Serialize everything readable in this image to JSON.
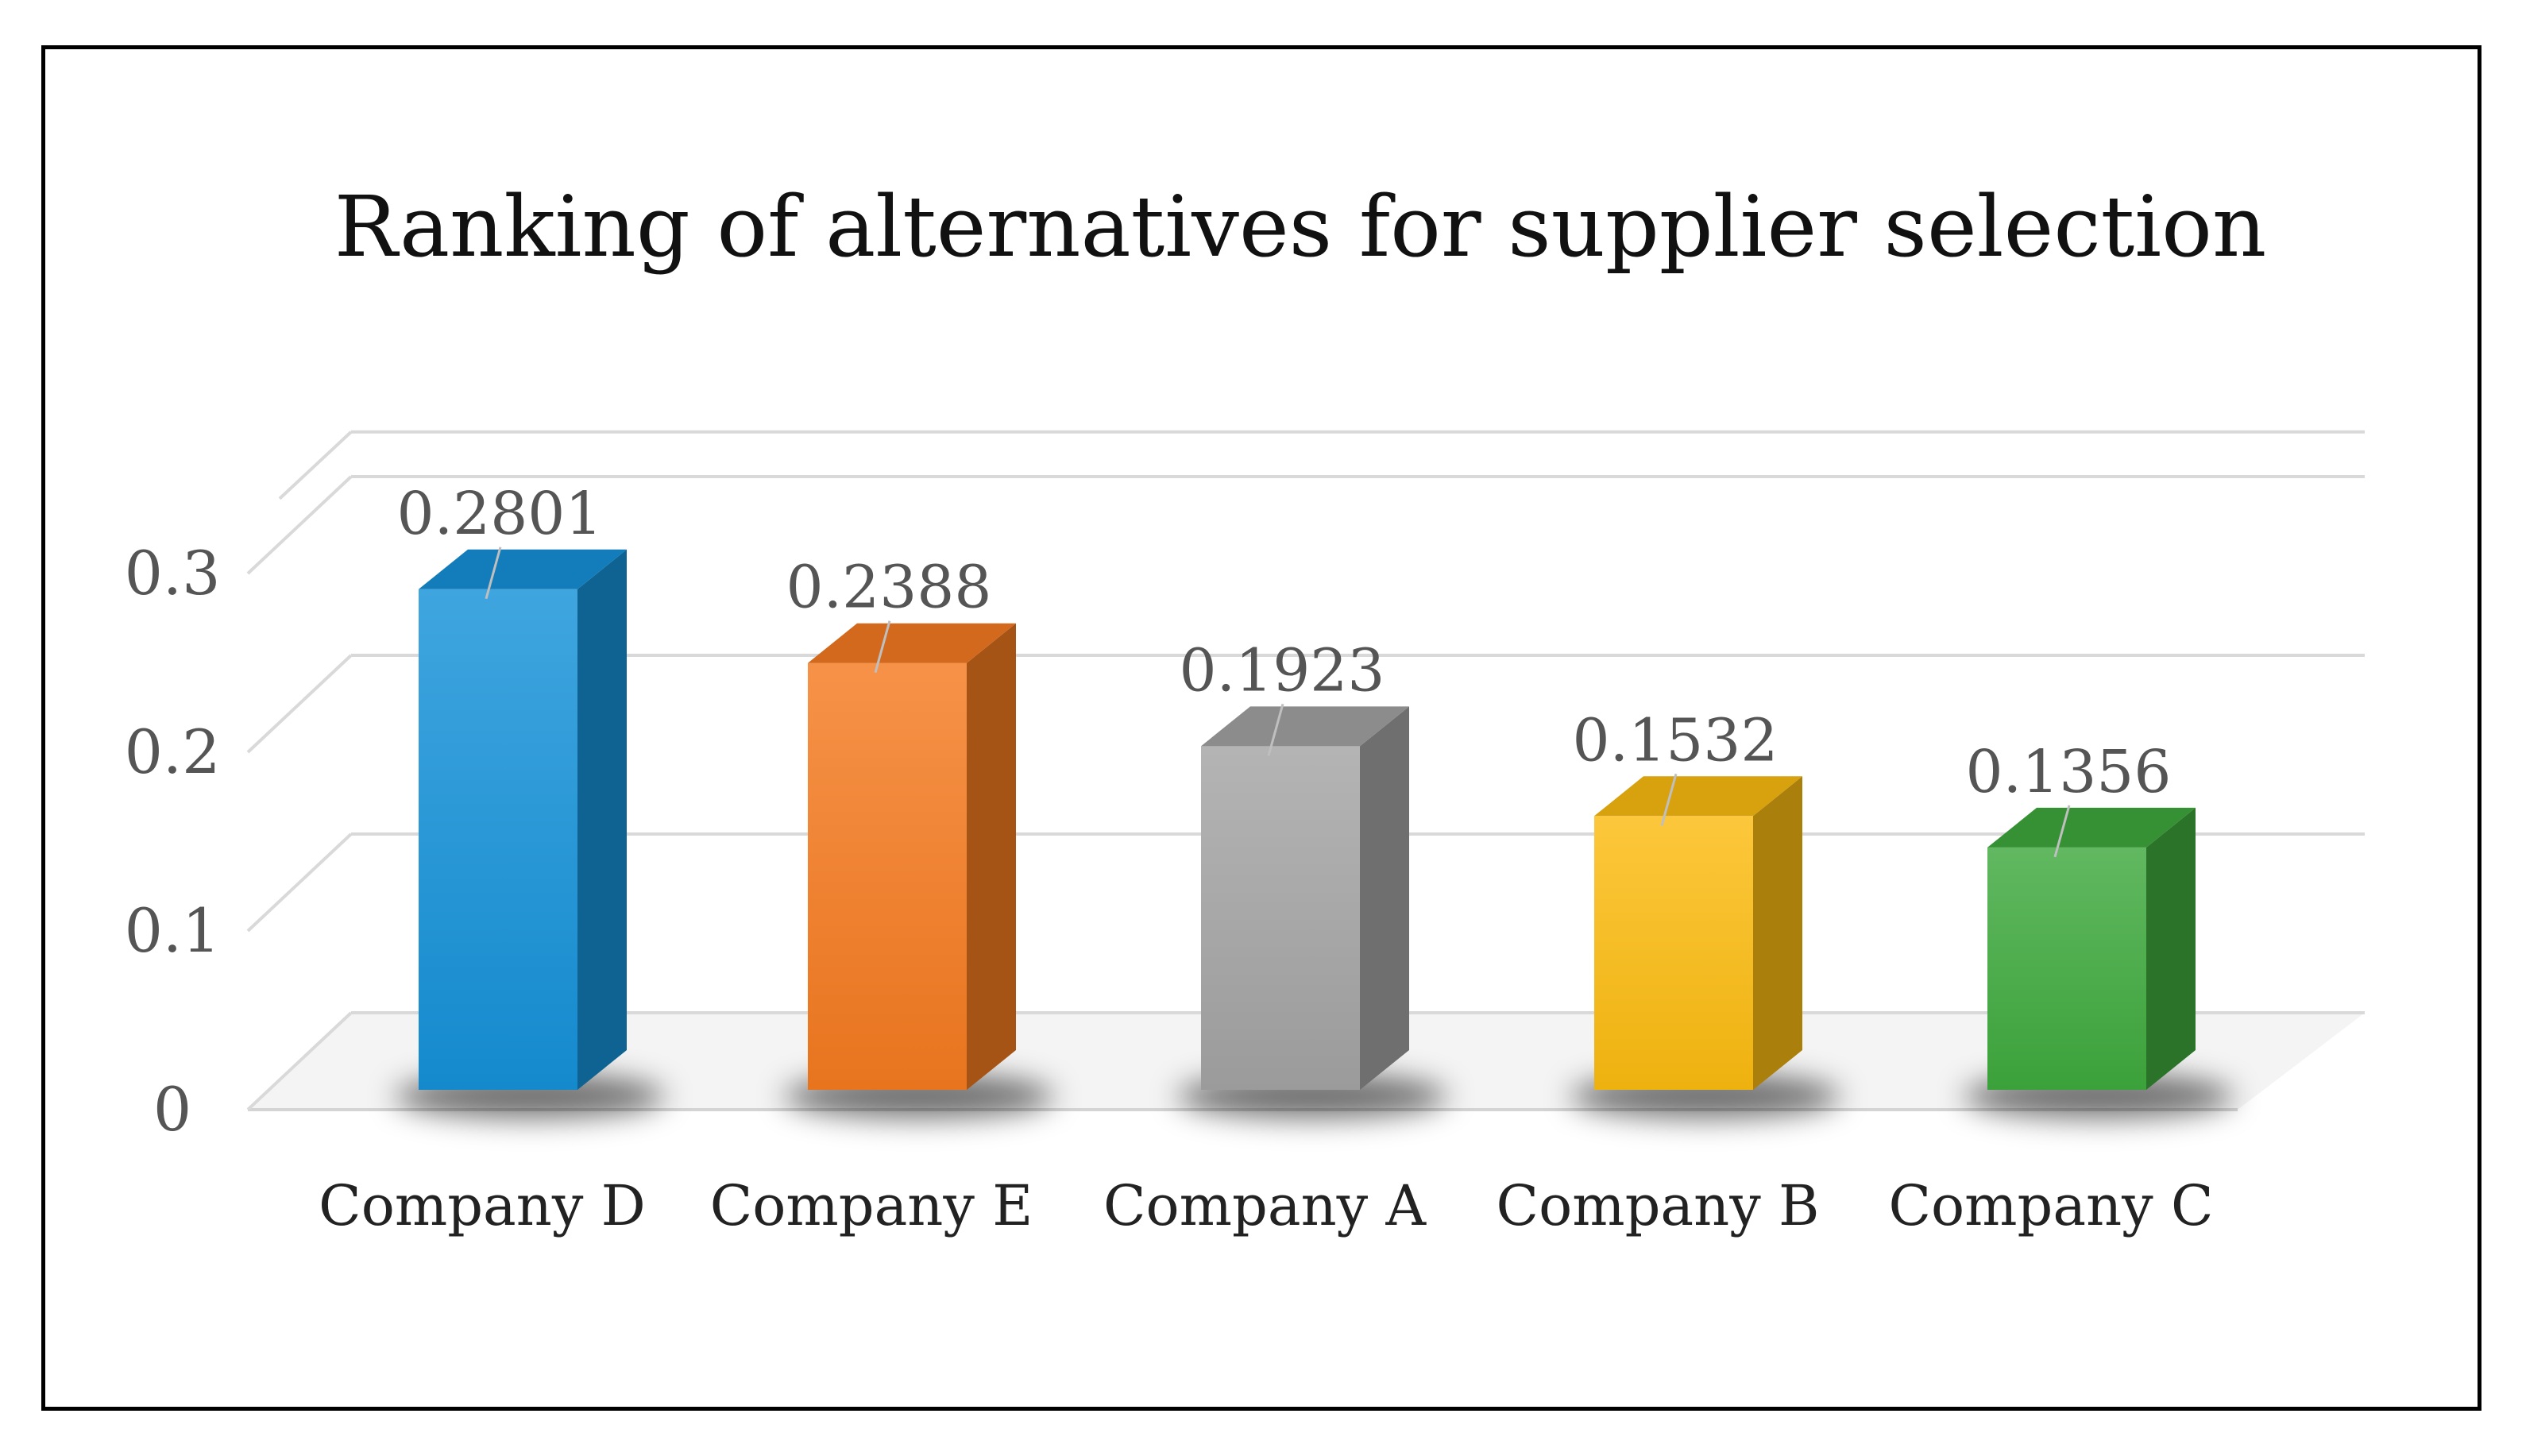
{
  "chart_data": {
    "type": "bar",
    "title": "Ranking of alternatives for supplier selection",
    "xlabel": "",
    "ylabel": "",
    "categories": [
      "Company D",
      "Company E",
      "Company A",
      "Company B",
      "Company C"
    ],
    "values": [
      0.2801,
      0.2388,
      0.1923,
      0.1532,
      0.1356
    ],
    "value_labels": [
      "0.2801",
      "0.2388",
      "0.1923",
      "0.1532",
      "0.1356"
    ],
    "yticks": [
      0,
      0.1,
      0.2,
      0.3
    ],
    "ytick_labels": [
      "0",
      "0.1",
      "0.2",
      "0.3"
    ],
    "ylim": [
      0,
      0.36
    ],
    "grid": true,
    "legend": "none",
    "style": "3d-column",
    "colors": [
      "#1591d8",
      "#f47a20",
      "#a3a3a3",
      "#fbbb10",
      "#3ea93d"
    ]
  }
}
